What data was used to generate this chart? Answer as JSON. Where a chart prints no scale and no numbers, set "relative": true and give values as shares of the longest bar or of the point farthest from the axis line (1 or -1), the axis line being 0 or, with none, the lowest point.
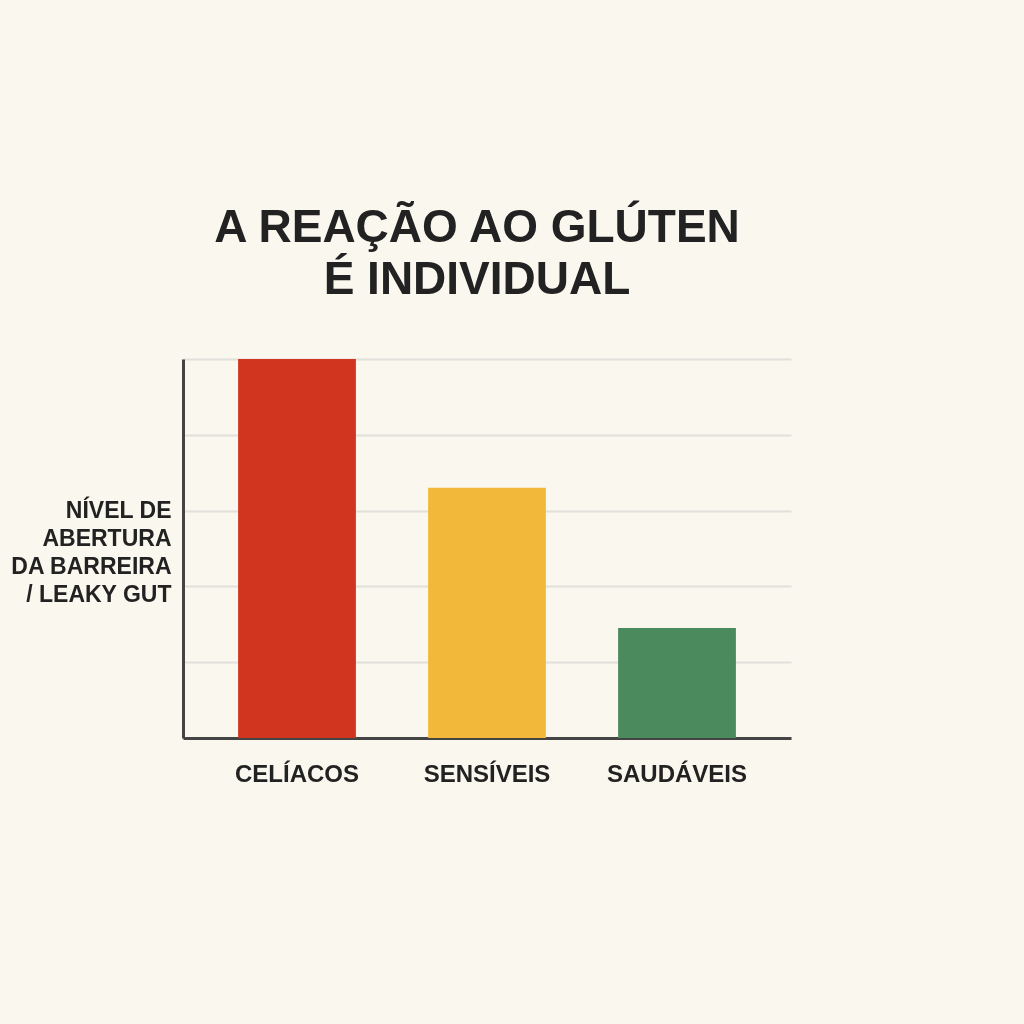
{
  "chart_data": {
    "type": "bar",
    "title": "A REAÇÃO AO GLÚTEN\nÉ INDIVIDUAL",
    "ylabel": "NÍVEL DE\nABERTURA\nDA BARREIRA\n/ LEAKY GUT",
    "categories": [
      "CELÍACOS",
      "SENSÍVEIS",
      "SAUDÁVEIS"
    ],
    "values": [
      1,
      0.66,
      0.29
    ],
    "colors": [
      "#d2351f",
      "#f2b83a",
      "#4a8a5c"
    ],
    "relative": true,
    "grid": "y"
  }
}
